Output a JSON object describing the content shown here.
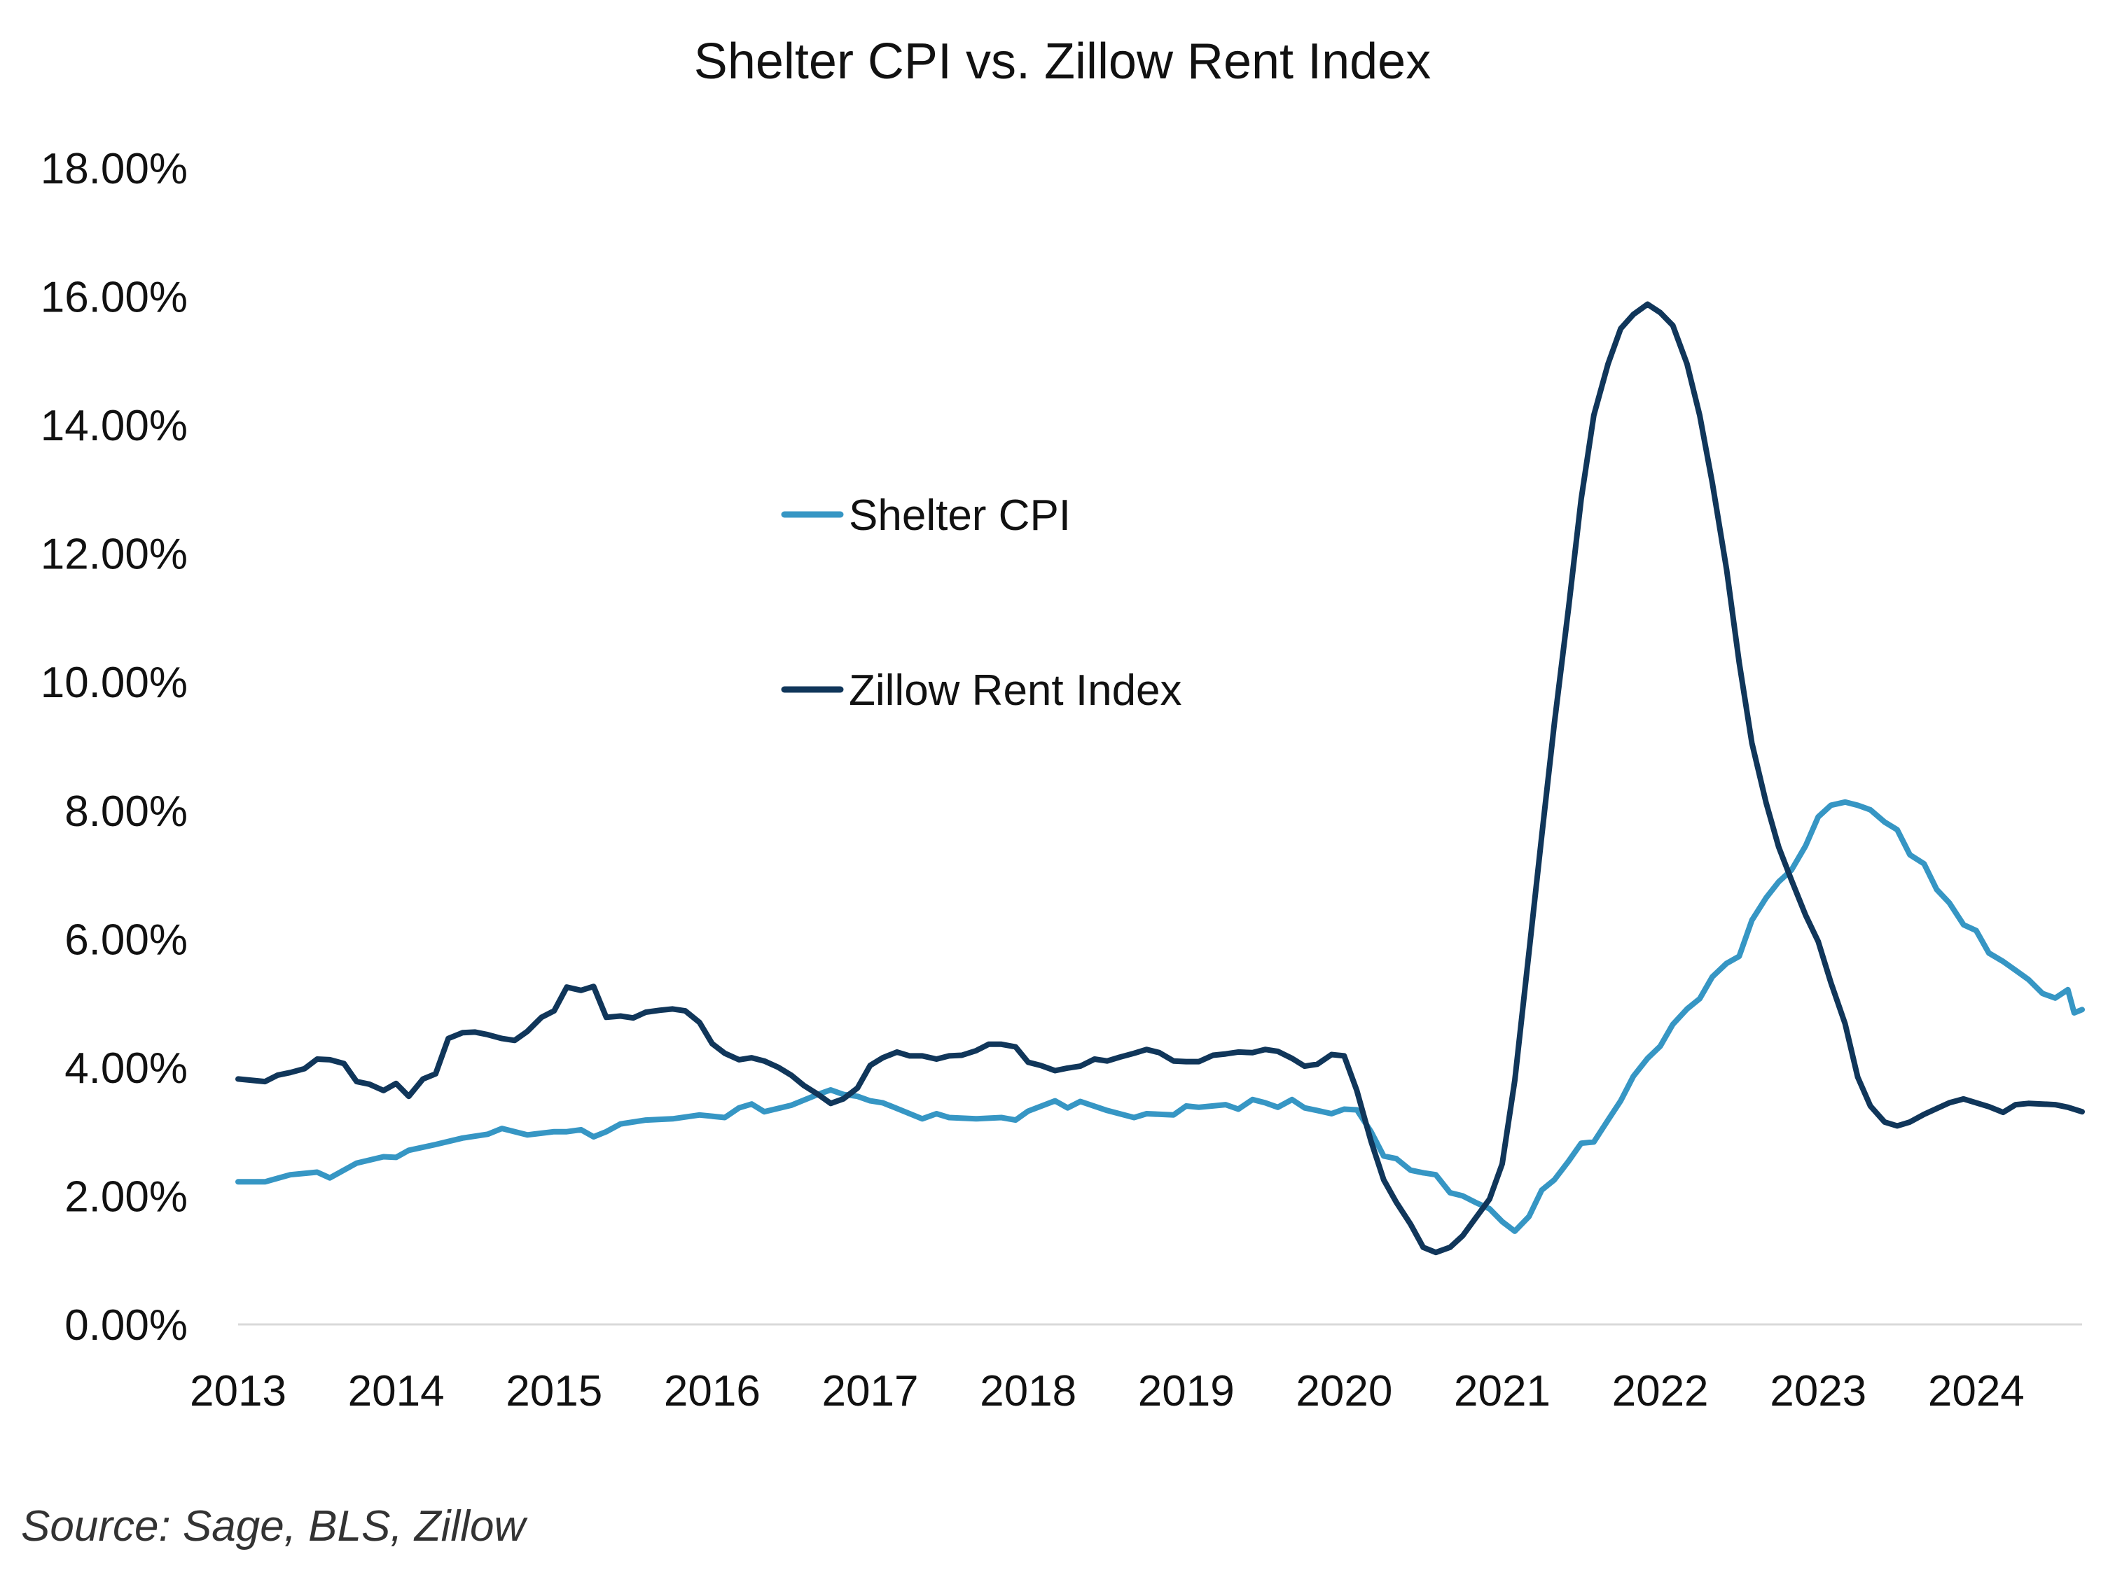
{
  "chart_data": {
    "type": "line",
    "title": "Shelter CPI vs. Zillow Rent Index",
    "xlabel": "",
    "ylabel": "",
    "xlim": [
      2013.0,
      2024.67
    ],
    "ylim": [
      0,
      0.18
    ],
    "y_ticks": [
      "0.00%",
      "2.00%",
      "4.00%",
      "6.00%",
      "8.00%",
      "10.00%",
      "12.00%",
      "14.00%",
      "16.00%",
      "18.00%"
    ],
    "x_ticks": [
      "2013",
      "2014",
      "2015",
      "2016",
      "2017",
      "2018",
      "2019",
      "2020",
      "2021",
      "2022",
      "2023",
      "2024"
    ],
    "grid": false,
    "legend_position": "center-left",
    "series": [
      {
        "name": "Shelter CPI",
        "color": "#3696c4",
        "points": [
          [
            2013.0,
            0.0222
          ],
          [
            2013.17,
            0.0222
          ],
          [
            2013.33,
            0.0233
          ],
          [
            2013.5,
            0.0237
          ],
          [
            2013.58,
            0.0228
          ],
          [
            2013.75,
            0.0251
          ],
          [
            2013.92,
            0.0261
          ],
          [
            2014.0,
            0.026
          ],
          [
            2014.08,
            0.0271
          ],
          [
            2014.25,
            0.028
          ],
          [
            2014.42,
            0.029
          ],
          [
            2014.58,
            0.0296
          ],
          [
            2014.67,
            0.0305
          ],
          [
            2014.83,
            0.0295
          ],
          [
            2015.0,
            0.03
          ],
          [
            2015.08,
            0.03
          ],
          [
            2015.17,
            0.0303
          ],
          [
            2015.25,
            0.0292
          ],
          [
            2015.33,
            0.03
          ],
          [
            2015.42,
            0.0312
          ],
          [
            2015.58,
            0.0318
          ],
          [
            2015.75,
            0.032
          ],
          [
            2015.92,
            0.0326
          ],
          [
            2016.08,
            0.0322
          ],
          [
            2016.17,
            0.0337
          ],
          [
            2016.25,
            0.0343
          ],
          [
            2016.33,
            0.0331
          ],
          [
            2016.5,
            0.0341
          ],
          [
            2016.67,
            0.0358
          ],
          [
            2016.75,
            0.0365
          ],
          [
            2016.83,
            0.0358
          ],
          [
            2016.92,
            0.0355
          ],
          [
            2017.0,
            0.0348
          ],
          [
            2017.08,
            0.0345
          ],
          [
            2017.17,
            0.0336
          ],
          [
            2017.33,
            0.032
          ],
          [
            2017.42,
            0.0328
          ],
          [
            2017.5,
            0.0322
          ],
          [
            2017.67,
            0.032
          ],
          [
            2017.83,
            0.0322
          ],
          [
            2017.92,
            0.0318
          ],
          [
            2018.0,
            0.0332
          ],
          [
            2018.17,
            0.0348
          ],
          [
            2018.25,
            0.0337
          ],
          [
            2018.33,
            0.0347
          ],
          [
            2018.5,
            0.0333
          ],
          [
            2018.67,
            0.0322
          ],
          [
            2018.75,
            0.0328
          ],
          [
            2018.92,
            0.0326
          ],
          [
            2019.0,
            0.034
          ],
          [
            2019.08,
            0.0338
          ],
          [
            2019.25,
            0.0342
          ],
          [
            2019.33,
            0.0335
          ],
          [
            2019.42,
            0.035
          ],
          [
            2019.5,
            0.0345
          ],
          [
            2019.58,
            0.0338
          ],
          [
            2019.67,
            0.035
          ],
          [
            2019.75,
            0.0337
          ],
          [
            2019.83,
            0.0333
          ],
          [
            2019.92,
            0.0328
          ],
          [
            2020.0,
            0.0335
          ],
          [
            2020.08,
            0.0334
          ],
          [
            2020.17,
            0.03
          ],
          [
            2020.25,
            0.0262
          ],
          [
            2020.33,
            0.0258
          ],
          [
            2020.42,
            0.024
          ],
          [
            2020.5,
            0.0236
          ],
          [
            2020.58,
            0.0233
          ],
          [
            2020.67,
            0.0205
          ],
          [
            2020.75,
            0.02
          ],
          [
            2020.83,
            0.019
          ],
          [
            2020.92,
            0.018
          ],
          [
            2021.0,
            0.016
          ],
          [
            2021.08,
            0.0145
          ],
          [
            2021.17,
            0.0168
          ],
          [
            2021.25,
            0.0209
          ],
          [
            2021.33,
            0.0225
          ],
          [
            2021.42,
            0.0254
          ],
          [
            2021.5,
            0.0282
          ],
          [
            2021.58,
            0.0284
          ],
          [
            2021.67,
            0.0318
          ],
          [
            2021.75,
            0.0348
          ],
          [
            2021.83,
            0.0386
          ],
          [
            2021.92,
            0.0414
          ],
          [
            2022.0,
            0.0433
          ],
          [
            2022.08,
            0.0467
          ],
          [
            2022.17,
            0.0491
          ],
          [
            2022.25,
            0.0507
          ],
          [
            2022.33,
            0.0541
          ],
          [
            2022.42,
            0.0562
          ],
          [
            2022.5,
            0.0573
          ],
          [
            2022.58,
            0.0629
          ],
          [
            2022.67,
            0.0664
          ],
          [
            2022.75,
            0.0689
          ],
          [
            2022.83,
            0.0707
          ],
          [
            2022.92,
            0.0745
          ],
          [
            2023.0,
            0.079
          ],
          [
            2023.08,
            0.0808
          ],
          [
            2023.17,
            0.0813
          ],
          [
            2023.25,
            0.0808
          ],
          [
            2023.33,
            0.0801
          ],
          [
            2023.42,
            0.0782
          ],
          [
            2023.5,
            0.077
          ],
          [
            2023.58,
            0.0731
          ],
          [
            2023.67,
            0.0717
          ],
          [
            2023.75,
            0.0677
          ],
          [
            2023.83,
            0.0656
          ],
          [
            2023.92,
            0.0622
          ],
          [
            2024.0,
            0.0613
          ],
          [
            2024.08,
            0.0578
          ],
          [
            2024.17,
            0.0565
          ],
          [
            2024.25,
            0.0551
          ],
          [
            2024.33,
            0.0537
          ],
          [
            2024.42,
            0.0515
          ],
          [
            2024.5,
            0.0508
          ],
          [
            2024.58,
            0.0521
          ],
          [
            2024.62,
            0.0485
          ],
          [
            2024.67,
            0.049
          ]
        ]
      },
      {
        "name": "Zillow Rent Index",
        "color": "#10365a",
        "points": [
          [
            2013.0,
            0.0382
          ],
          [
            2013.17,
            0.0378
          ],
          [
            2013.25,
            0.0388
          ],
          [
            2013.33,
            0.0392
          ],
          [
            2013.42,
            0.0398
          ],
          [
            2013.5,
            0.0413
          ],
          [
            2013.58,
            0.0412
          ],
          [
            2013.67,
            0.0406
          ],
          [
            2013.75,
            0.0378
          ],
          [
            2013.83,
            0.0374
          ],
          [
            2013.92,
            0.0364
          ],
          [
            2014.0,
            0.0375
          ],
          [
            2014.08,
            0.0355
          ],
          [
            2014.17,
            0.0382
          ],
          [
            2014.25,
            0.039
          ],
          [
            2014.33,
            0.0445
          ],
          [
            2014.42,
            0.0454
          ],
          [
            2014.5,
            0.0455
          ],
          [
            2014.58,
            0.0451
          ],
          [
            2014.67,
            0.0445
          ],
          [
            2014.75,
            0.0442
          ],
          [
            2014.83,
            0.0456
          ],
          [
            2014.92,
            0.0478
          ],
          [
            2015.0,
            0.0488
          ],
          [
            2015.08,
            0.0525
          ],
          [
            2015.17,
            0.052
          ],
          [
            2015.25,
            0.0526
          ],
          [
            2015.33,
            0.0478
          ],
          [
            2015.42,
            0.048
          ],
          [
            2015.5,
            0.0477
          ],
          [
            2015.58,
            0.0486
          ],
          [
            2015.67,
            0.0489
          ],
          [
            2015.75,
            0.0491
          ],
          [
            2015.83,
            0.0488
          ],
          [
            2015.92,
            0.047
          ],
          [
            2016.0,
            0.0437
          ],
          [
            2016.08,
            0.0422
          ],
          [
            2016.17,
            0.0412
          ],
          [
            2016.25,
            0.0415
          ],
          [
            2016.33,
            0.041
          ],
          [
            2016.42,
            0.04
          ],
          [
            2016.5,
            0.0388
          ],
          [
            2016.58,
            0.0372
          ],
          [
            2016.67,
            0.0358
          ],
          [
            2016.75,
            0.0344
          ],
          [
            2016.83,
            0.0351
          ],
          [
            2016.92,
            0.0368
          ],
          [
            2017.0,
            0.0403
          ],
          [
            2017.08,
            0.0415
          ],
          [
            2017.17,
            0.0424
          ],
          [
            2017.25,
            0.0418
          ],
          [
            2017.33,
            0.0418
          ],
          [
            2017.42,
            0.0413
          ],
          [
            2017.5,
            0.0418
          ],
          [
            2017.58,
            0.0419
          ],
          [
            2017.67,
            0.0426
          ],
          [
            2017.75,
            0.0436
          ],
          [
            2017.83,
            0.0436
          ],
          [
            2017.92,
            0.0432
          ],
          [
            2018.0,
            0.0408
          ],
          [
            2018.08,
            0.0403
          ],
          [
            2018.17,
            0.0395
          ],
          [
            2018.25,
            0.0399
          ],
          [
            2018.33,
            0.0402
          ],
          [
            2018.42,
            0.0413
          ],
          [
            2018.5,
            0.041
          ],
          [
            2018.58,
            0.0416
          ],
          [
            2018.67,
            0.0422
          ],
          [
            2018.75,
            0.0428
          ],
          [
            2018.83,
            0.0423
          ],
          [
            2018.92,
            0.041
          ],
          [
            2019.0,
            0.0409
          ],
          [
            2019.08,
            0.0409
          ],
          [
            2019.17,
            0.0419
          ],
          [
            2019.25,
            0.0421
          ],
          [
            2019.33,
            0.0424
          ],
          [
            2019.42,
            0.0423
          ],
          [
            2019.5,
            0.0428
          ],
          [
            2019.58,
            0.0425
          ],
          [
            2019.67,
            0.0414
          ],
          [
            2019.75,
            0.0402
          ],
          [
            2019.83,
            0.0405
          ],
          [
            2019.92,
            0.042
          ],
          [
            2020.0,
            0.0418
          ],
          [
            2020.08,
            0.0364
          ],
          [
            2020.17,
            0.0285
          ],
          [
            2020.25,
            0.0225
          ],
          [
            2020.33,
            0.019
          ],
          [
            2020.42,
            0.0156
          ],
          [
            2020.5,
            0.012
          ],
          [
            2020.58,
            0.0112
          ],
          [
            2020.67,
            0.012
          ],
          [
            2020.75,
            0.0138
          ],
          [
            2020.83,
            0.0165
          ],
          [
            2020.92,
            0.0195
          ],
          [
            2021.0,
            0.025
          ],
          [
            2021.08,
            0.038
          ],
          [
            2021.17,
            0.058
          ],
          [
            2021.25,
            0.076
          ],
          [
            2021.33,
            0.0935
          ],
          [
            2021.42,
            0.1115
          ],
          [
            2021.5,
            0.1285
          ],
          [
            2021.58,
            0.1415
          ],
          [
            2021.67,
            0.1495
          ],
          [
            2021.75,
            0.155
          ],
          [
            2021.83,
            0.1572
          ],
          [
            2021.92,
            0.1588
          ],
          [
            2022.0,
            0.1575
          ],
          [
            2022.08,
            0.1555
          ],
          [
            2022.17,
            0.1495
          ],
          [
            2022.25,
            0.1415
          ],
          [
            2022.33,
            0.131
          ],
          [
            2022.42,
            0.1175
          ],
          [
            2022.5,
            0.103
          ],
          [
            2022.58,
            0.0905
          ],
          [
            2022.67,
            0.0812
          ],
          [
            2022.75,
            0.0743
          ],
          [
            2022.83,
            0.0692
          ],
          [
            2022.92,
            0.0637
          ],
          [
            2023.0,
            0.0596
          ],
          [
            2023.08,
            0.0532
          ],
          [
            2023.17,
            0.0468
          ],
          [
            2023.25,
            0.0385
          ],
          [
            2023.33,
            0.034
          ],
          [
            2023.42,
            0.0315
          ],
          [
            2023.5,
            0.0309
          ],
          [
            2023.58,
            0.0315
          ],
          [
            2023.67,
            0.0327
          ],
          [
            2023.75,
            0.0336
          ],
          [
            2023.83,
            0.0345
          ],
          [
            2023.92,
            0.0351
          ],
          [
            2024.0,
            0.0345
          ],
          [
            2024.08,
            0.0339
          ],
          [
            2024.17,
            0.033
          ],
          [
            2024.25,
            0.0342
          ],
          [
            2024.33,
            0.0344
          ],
          [
            2024.42,
            0.0343
          ],
          [
            2024.5,
            0.0342
          ],
          [
            2024.58,
            0.0338
          ],
          [
            2024.67,
            0.0331
          ]
        ]
      }
    ],
    "source_note": "Source: Sage, BLS, Zillow"
  }
}
